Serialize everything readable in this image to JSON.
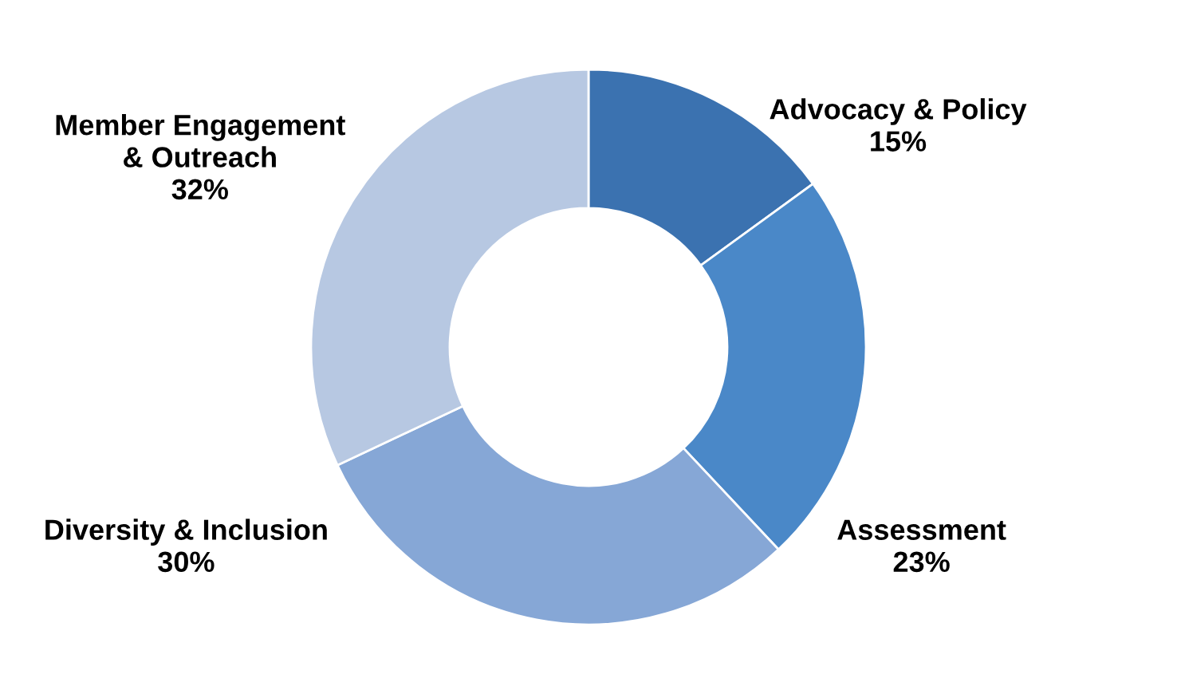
{
  "chart_data": {
    "type": "donut",
    "categories": [
      "Advocacy & Policy",
      "Assessment",
      "Diversity & Inclusion",
      "Member Engagement & Outreach"
    ],
    "values": [
      15,
      23,
      30,
      32
    ],
    "colors": [
      "#3b72b0",
      "#4a88c8",
      "#86a7d6",
      "#b7c8e2"
    ],
    "value_labels": [
      "15%",
      "23%",
      "30%",
      "32%"
    ]
  }
}
